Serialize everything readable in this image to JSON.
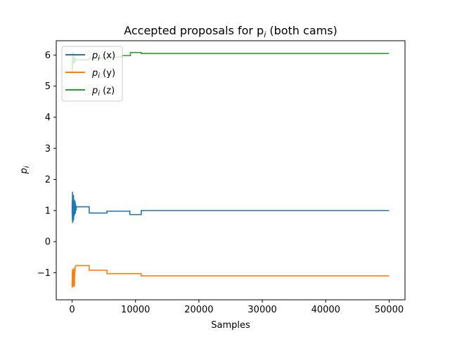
{
  "chart_data": {
    "type": "line",
    "title": "Accepted proposals for p",
    "title_sub": "i",
    "title_suffix": " (both cams)",
    "xlabel": "Samples",
    "ylabel": "p",
    "ylabel_sub": "i",
    "xlim": [
      -2500,
      52500
    ],
    "ylim": [
      -1.87,
      6.46
    ],
    "xticks": [
      0,
      10000,
      20000,
      30000,
      40000,
      50000
    ],
    "yticks": [
      -1,
      0,
      1,
      2,
      3,
      4,
      5,
      6
    ],
    "grid": false,
    "legend_placement": "top-left",
    "series": [
      {
        "name": "p",
        "name_sub": "i",
        "name_suffix": " (x)",
        "color": "#1f77b4",
        "x": [
          0,
          20,
          40,
          60,
          80,
          100,
          120,
          140,
          160,
          180,
          200,
          220,
          240,
          260,
          280,
          300,
          330,
          360,
          390,
          420,
          450,
          480,
          520,
          560,
          600,
          700,
          800,
          2700,
          2700,
          5500,
          5500,
          9100,
          9100,
          10900,
          10900,
          50000
        ],
        "y": [
          0.9,
          1.3,
          0.7,
          1.6,
          0.6,
          1.5,
          0.75,
          1.4,
          0.65,
          1.2,
          0.8,
          1.5,
          0.7,
          1.3,
          0.8,
          1.2,
          0.9,
          1.35,
          0.85,
          1.1,
          0.95,
          1.3,
          0.9,
          1.2,
          1.0,
          1.12,
          1.12,
          1.12,
          0.92,
          0.92,
          0.98,
          0.98,
          0.87,
          0.87,
          1.0,
          1.0
        ]
      },
      {
        "name": "p",
        "name_sub": "i",
        "name_suffix": " (y)",
        "color": "#ff7f0e",
        "x": [
          0,
          20,
          40,
          60,
          80,
          100,
          130,
          160,
          190,
          220,
          250,
          280,
          320,
          360,
          400,
          450,
          500,
          600,
          700,
          2700,
          2700,
          5500,
          5500,
          10900,
          10900,
          50000
        ],
        "y": [
          -1.2,
          -1.48,
          -0.95,
          -1.42,
          -0.88,
          -1.3,
          -1.4,
          -1.05,
          -1.45,
          -0.9,
          -1.35,
          -1.0,
          -0.85,
          -1.45,
          -1.1,
          -0.95,
          -0.8,
          -0.77,
          -0.77,
          -0.77,
          -0.92,
          -0.92,
          -1.03,
          -1.03,
          -1.1,
          -1.1
        ]
      },
      {
        "name": "p",
        "name_sub": "i",
        "name_suffix": " (z)",
        "color": "#2ca02c",
        "x": [
          0,
          20,
          40,
          60,
          80,
          100,
          140,
          180,
          220,
          260,
          300,
          350,
          400,
          450,
          500,
          600,
          700,
          800,
          1000,
          2700,
          2700,
          5500,
          5500,
          7800,
          7800,
          9200,
          9200,
          10900,
          10900,
          50000
        ],
        "y": [
          5.75,
          5.4,
          5.85,
          5.55,
          6.1,
          5.65,
          5.9,
          5.7,
          6.0,
          5.8,
          5.95,
          5.85,
          5.75,
          5.9,
          5.82,
          5.87,
          5.85,
          5.85,
          5.85,
          5.85,
          5.9,
          5.9,
          5.93,
          5.93,
          5.98,
          5.98,
          6.08,
          6.08,
          6.05,
          6.05
        ]
      }
    ]
  }
}
